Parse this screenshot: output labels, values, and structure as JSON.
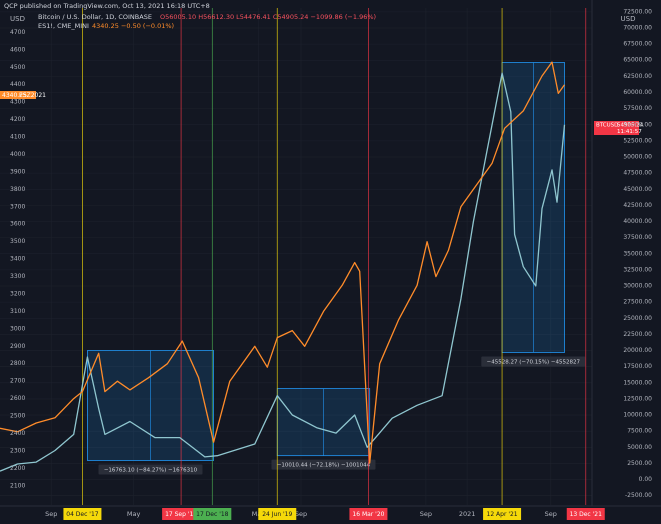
{
  "header": {
    "publisher": "QCP published on TradingView.com, Oct 13, 2021 16:18 UTC+8",
    "legend_btc": "Bitcoin / U.S. Dollar, 1D, COINBASE",
    "legend_btc_ohlc": "O56005.10 H56612.30 L54476.41 C54905.24 −1099.86 (−1.96%)",
    "legend_es": "ES1!, CME_MINI",
    "legend_es_quote": "4340.25 −0.50 (−0.01%)",
    "left_unit": "USD",
    "right_unit": "USD",
    "left_badge_price": "4340.25",
    "left_badge_symbol": "ESZ2021",
    "right_badge_symbol": "BTCUSD",
    "right_badge_price": "54905.24",
    "right_badge_time": "11:41:57"
  },
  "chart_data": {
    "type": "line",
    "xlim": [
      2017.26,
      2022.0
    ],
    "xticks": [
      {
        "value": 2017.67,
        "label": "Sep"
      },
      {
        "value": 2018.33,
        "label": "May"
      },
      {
        "value": 2019.33,
        "label": "May"
      },
      {
        "value": 2019.67,
        "label": "Sep"
      },
      {
        "value": 2020.67,
        "label": "Sep"
      },
      {
        "value": 2021.0,
        "label": "2021"
      },
      {
        "value": 2021.67,
        "label": "Sep"
      }
    ],
    "events": [
      {
        "label": "04 Dec '17",
        "x": 2017.92,
        "color": "#f5d90a"
      },
      {
        "label": "17 Sep '18",
        "x": 2018.71,
        "color": "#f23645"
      },
      {
        "label": "17 Dec '18",
        "x": 2018.96,
        "color": "#4caf50"
      },
      {
        "label": "24 Jun '19",
        "x": 2019.48,
        "color": "#f5d90a"
      },
      {
        "label": "16 Mar '20",
        "x": 2020.21,
        "color": "#f23645"
      },
      {
        "label": "12 Apr '21",
        "x": 2021.28,
        "color": "#f5d90a"
      },
      {
        "label": "13 Dec '21",
        "x": 2021.95,
        "color": "#f23645"
      }
    ],
    "ylim": [
      1990,
      4840
    ],
    "yticks": [
      2100,
      2200,
      2300,
      2400,
      2500,
      2600,
      2700,
      2800,
      2900,
      3000,
      3100,
      3200,
      3300,
      3400,
      3500,
      3600,
      3700,
      3800,
      3900,
      4000,
      4100,
      4200,
      4300,
      4400,
      4500,
      4600,
      4700
    ],
    "y2lim": [
      -3950,
      73100
    ],
    "y2ticks": [
      {
        "value": -2500,
        "label": "-2500.00"
      },
      {
        "value": 0,
        "label": "0.00"
      },
      {
        "value": 2500,
        "label": "2500.00"
      },
      {
        "value": 5000,
        "label": "5000.00"
      },
      {
        "value": 7500,
        "label": "7500.00"
      },
      {
        "value": 10000,
        "label": "10000.00"
      },
      {
        "value": 12500,
        "label": "12500.00"
      },
      {
        "value": 15000,
        "label": "15000.00"
      },
      {
        "value": 17500,
        "label": "17500.00"
      },
      {
        "value": 20000,
        "label": "20000.00"
      },
      {
        "value": 22500,
        "label": "22500.00"
      },
      {
        "value": 25000,
        "label": "25000.00"
      },
      {
        "value": 27500,
        "label": "27500.00"
      },
      {
        "value": 30000,
        "label": "30000.00"
      },
      {
        "value": 32500,
        "label": "32500.00"
      },
      {
        "value": 35000,
        "label": "35000.00"
      },
      {
        "value": 37500,
        "label": "37500.00"
      },
      {
        "value": 40000,
        "label": "40000.00"
      },
      {
        "value": 42500,
        "label": "42500.00"
      },
      {
        "value": 45000,
        "label": "45000.00"
      },
      {
        "value": 47500,
        "label": "47500.00"
      },
      {
        "value": 50000,
        "label": "50000.00"
      },
      {
        "value": 52500,
        "label": "52500.00"
      },
      {
        "value": 55000,
        "label": "55000.00"
      },
      {
        "value": 57500,
        "label": "57500.00"
      },
      {
        "value": 60000,
        "label": "60000.00"
      },
      {
        "value": 62500,
        "label": "62500.00"
      },
      {
        "value": 65000,
        "label": "65000.00"
      },
      {
        "value": 67500,
        "label": "67500.00"
      },
      {
        "value": 70000,
        "label": "70000.00"
      },
      {
        "value": 72500,
        "label": "72500.00"
      }
    ],
    "series": [
      {
        "name": "ES1!, CME_MINI",
        "color": "#ff8c2a",
        "x": [
          2017.26,
          2017.4,
          2017.55,
          2017.7,
          2017.85,
          2017.92,
          2018.05,
          2018.1,
          2018.2,
          2018.3,
          2018.45,
          2018.6,
          2018.72,
          2018.85,
          2018.97,
          2019.1,
          2019.3,
          2019.4,
          2019.48,
          2019.6,
          2019.7,
          2019.85,
          2020.0,
          2020.1,
          2020.14,
          2020.22,
          2020.3,
          2020.45,
          2020.6,
          2020.68,
          2020.75,
          2020.85,
          2020.95,
          2021.1,
          2021.2,
          2021.3,
          2021.45,
          2021.6,
          2021.68,
          2021.73,
          2021.78
        ],
        "values": [
          2430,
          2410,
          2460,
          2490,
          2600,
          2640,
          2860,
          2640,
          2700,
          2650,
          2720,
          2800,
          2930,
          2720,
          2350,
          2700,
          2900,
          2780,
          2950,
          2990,
          2900,
          3100,
          3250,
          3380,
          3330,
          2230,
          2800,
          3050,
          3250,
          3500,
          3300,
          3450,
          3700,
          3850,
          3950,
          4150,
          4250,
          4450,
          4530,
          4350,
          4400
        ]
      },
      {
        "name": "Bitcoin / U.S. Dollar",
        "color": "#8fc6cf",
        "x": [
          2017.26,
          2017.4,
          2017.55,
          2017.7,
          2017.85,
          2017.96,
          2018.05,
          2018.1,
          2018.3,
          2018.5,
          2018.7,
          2018.9,
          2019.0,
          2019.3,
          2019.48,
          2019.6,
          2019.8,
          2019.95,
          2020.1,
          2020.2,
          2020.4,
          2020.6,
          2020.8,
          2020.95,
          2021.05,
          2021.15,
          2021.28,
          2021.35,
          2021.38,
          2021.45,
          2021.55,
          2021.6,
          2021.68,
          2021.72,
          2021.78
        ],
        "values": [
          1300,
          2400,
          2700,
          4500,
          7000,
          19000,
          11000,
          7000,
          9000,
          6500,
          6500,
          3500,
          3700,
          5500,
          13000,
          10000,
          8000,
          7200,
          10000,
          5000,
          9500,
          11500,
          13000,
          28000,
          40000,
          50000,
          63000,
          57000,
          38000,
          33000,
          30000,
          42000,
          48000,
          43000,
          55000
        ]
      }
    ],
    "boxes": [
      {
        "x1": 2017.96,
        "x2": 2018.97,
        "top": 20000,
        "bottom": 2950,
        "label": "−16763.10 (−84.27%) −1676310"
      },
      {
        "x1": 2019.48,
        "x2": 2020.22,
        "top": 14100,
        "bottom": 3700,
        "label": "−10010.44 (−72.18%) −1001044"
      },
      {
        "x1": 2021.28,
        "x2": 2021.78,
        "top": 64650,
        "bottom": 19700,
        "label": "−45528.27 (−70.15%) −4552827"
      }
    ]
  }
}
